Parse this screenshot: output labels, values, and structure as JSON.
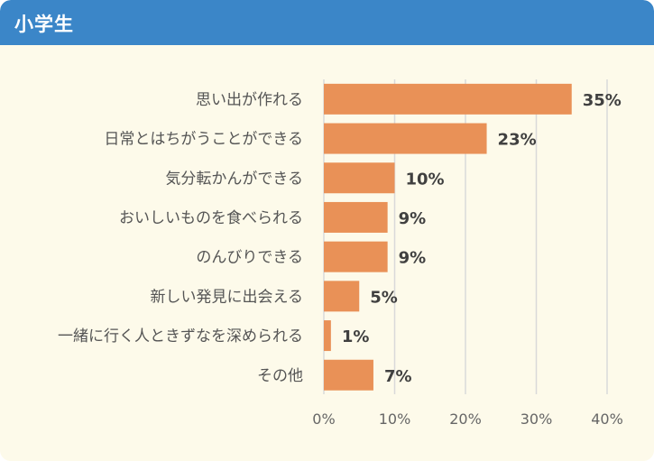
{
  "header": {
    "title": "小学生"
  },
  "colors": {
    "header": "#3b86c8",
    "background": "#fdfaea",
    "bar": "#e99157",
    "grid": "#d9d9d9"
  },
  "chart_data": {
    "type": "bar",
    "orientation": "horizontal",
    "categories": [
      "思い出が作れる",
      "日常とはちがうことができる",
      "気分転かんができる",
      "おいしいものを食べられる",
      "のんびりできる",
      "新しい発見に出会える",
      "一緒に行く人ときずなを深められる",
      "その他"
    ],
    "values": [
      35,
      23,
      10,
      9,
      9,
      5,
      1,
      7
    ],
    "value_labels": [
      "35%",
      "23%",
      "10%",
      "9%",
      "9%",
      "5%",
      "1%",
      "7%"
    ],
    "xlim": [
      0,
      40
    ],
    "xticks": [
      0,
      10,
      20,
      30,
      40
    ],
    "xtick_labels": [
      "0%",
      "10%",
      "20%",
      "30%",
      "40%"
    ],
    "grid": true,
    "legend": false
  }
}
